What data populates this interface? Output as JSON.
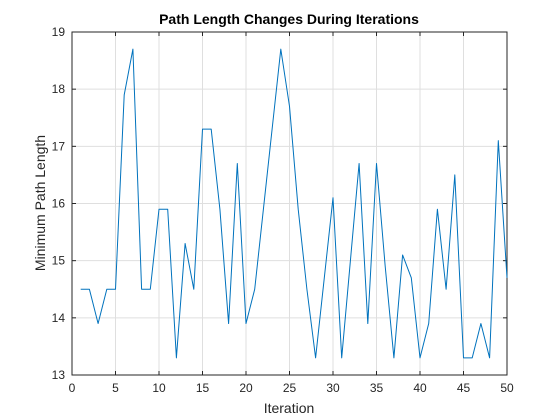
{
  "chart_data": {
    "type": "line",
    "title": "Path Length Changes During Iterations",
    "xlabel": "Iteration",
    "ylabel": "Minimum Path Length",
    "xlim": [
      0,
      50
    ],
    "ylim": [
      13,
      19
    ],
    "xticks": [
      0,
      5,
      10,
      15,
      20,
      25,
      30,
      35,
      40,
      45,
      50
    ],
    "yticks": [
      13,
      14,
      15,
      16,
      17,
      18,
      19
    ],
    "grid": true,
    "series": [
      {
        "name": "Minimum Path Length",
        "color": "#0072BD",
        "x": [
          1,
          2,
          3,
          4,
          5,
          6,
          7,
          8,
          9,
          10,
          11,
          12,
          13,
          14,
          15,
          16,
          17,
          18,
          19,
          20,
          21,
          22,
          23,
          24,
          25,
          26,
          27,
          28,
          29,
          30,
          31,
          32,
          33,
          34,
          35,
          36,
          37,
          38,
          39,
          40,
          41,
          42,
          43,
          44,
          45,
          46,
          47,
          48,
          49,
          50
        ],
        "values": [
          14.5,
          14.5,
          13.9,
          14.5,
          14.5,
          17.9,
          18.7,
          14.5,
          14.5,
          15.9,
          15.9,
          13.3,
          15.3,
          14.5,
          17.3,
          17.3,
          15.9,
          13.9,
          16.7,
          13.9,
          14.5,
          15.9,
          17.3,
          18.7,
          17.7,
          15.9,
          14.5,
          13.3,
          14.7,
          16.1,
          13.3,
          15.0,
          16.7,
          13.9,
          16.7,
          14.9,
          13.3,
          15.1,
          14.7,
          13.3,
          13.9,
          15.9,
          14.5,
          16.5,
          13.3,
          13.3,
          13.9,
          13.3,
          17.1,
          14.7
        ]
      }
    ]
  },
  "colors": {
    "line": "#0072BD",
    "axes": "#262626",
    "grid": "#DFDFDF"
  }
}
